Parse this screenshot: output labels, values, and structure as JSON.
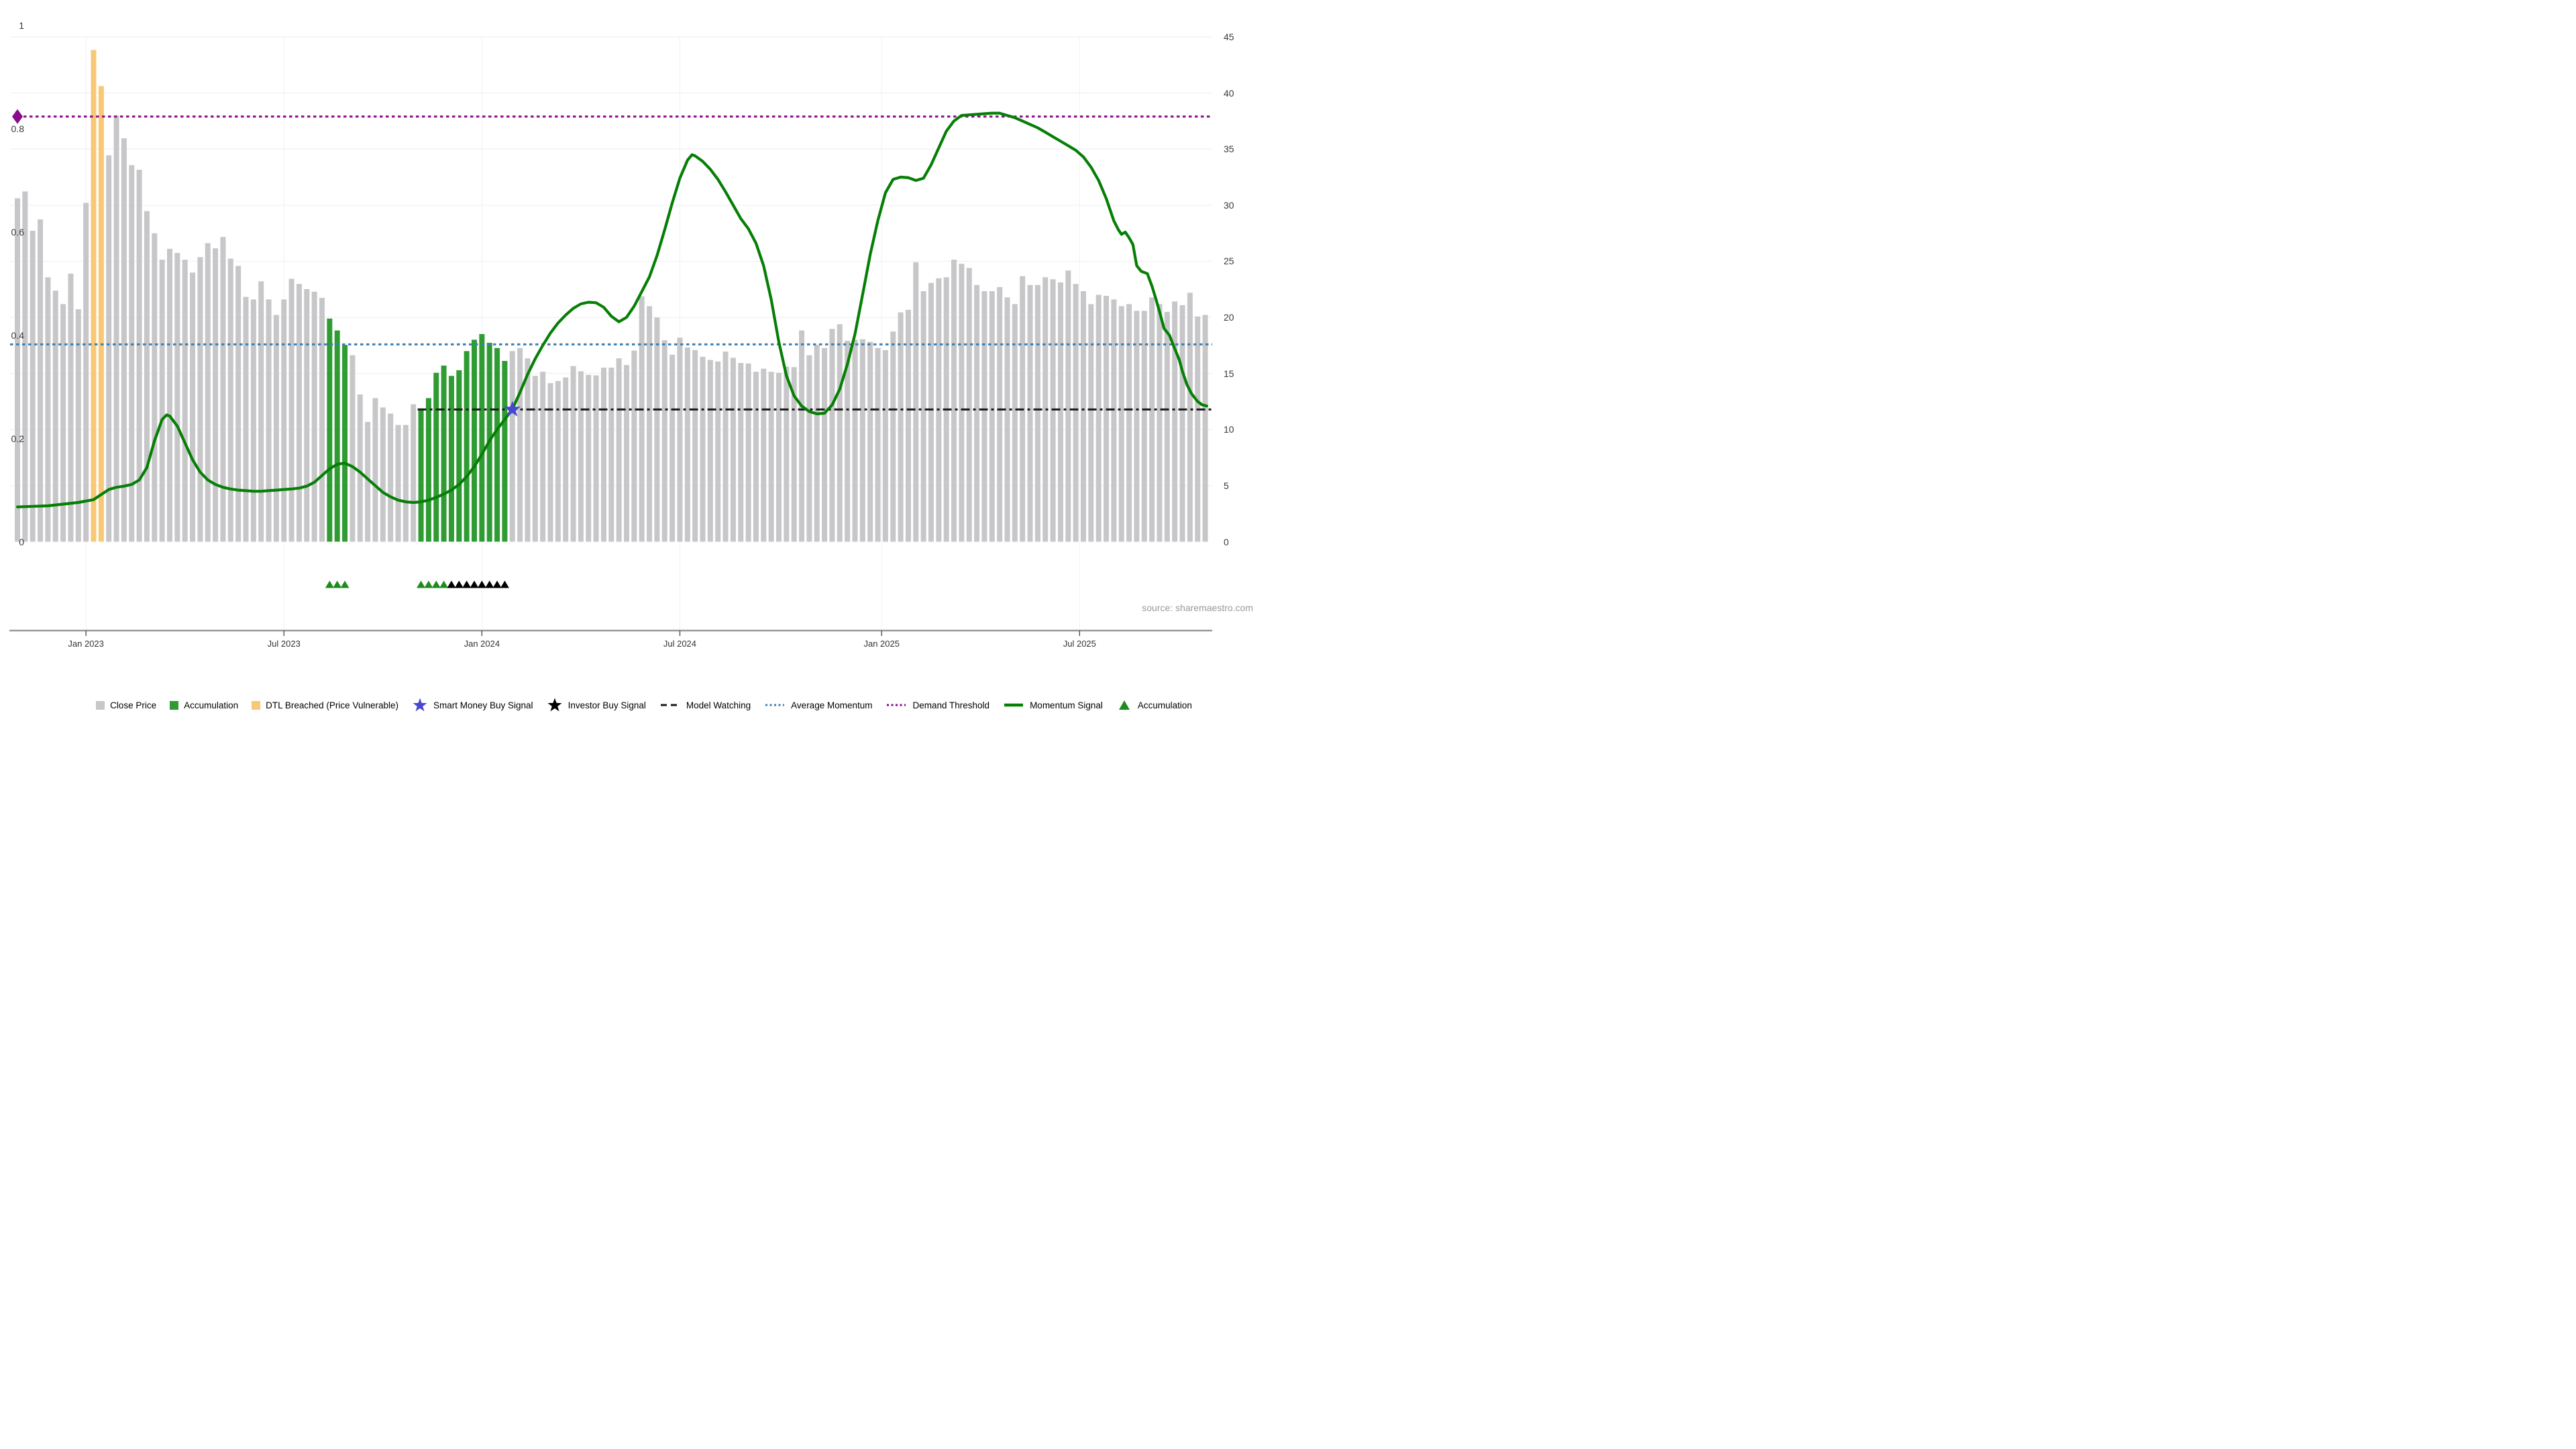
{
  "source_note": "source: sharemaestro.com",
  "colors": {
    "close_price_bar": "#c7c7c9",
    "accumulation_bar": "#2f9b33",
    "dtl_breached_bar": "#f8c876",
    "momentum_line": "#057f05",
    "average_momentum_line": "#3e7fb1",
    "demand_threshold_line": "#8a0b8a",
    "model_watching_line": "#1a1a1a",
    "smart_money_star": "#4747d1",
    "investor_star": "#000000",
    "accumulation_triangle": "#1d8c1d",
    "gridline": "#eceef4",
    "x_axis_line": "#999999",
    "tick_text": "#333333"
  },
  "left_axis": {
    "ticks": [
      {
        "label": "0",
        "v": 0
      },
      {
        "label": "0.2",
        "v": 0.2
      },
      {
        "label": "0.4",
        "v": 0.4
      },
      {
        "label": "0.6",
        "v": 0.6
      },
      {
        "label": "0.8",
        "v": 0.8
      },
      {
        "label": "1",
        "v": 1
      }
    ]
  },
  "right_axis": {
    "ticks": [
      {
        "label": "0",
        "v": 0
      },
      {
        "label": "5",
        "v": 5
      },
      {
        "label": "10",
        "v": 10
      },
      {
        "label": "15",
        "v": 15
      },
      {
        "label": "20",
        "v": 20
      },
      {
        "label": "25",
        "v": 25
      },
      {
        "label": "30",
        "v": 30
      },
      {
        "label": "35",
        "v": 35
      },
      {
        "label": "40",
        "v": 40
      },
      {
        "label": "45",
        "v": 45
      }
    ]
  },
  "x_axis": {
    "ticks": [
      {
        "label": "Jan 2023",
        "bar": 9
      },
      {
        "label": "Jul 2023",
        "bar": 35
      },
      {
        "label": "Jan 2024",
        "bar": 61
      },
      {
        "label": "Jul 2024",
        "bar": 87
      },
      {
        "label": "Jan 2025",
        "bar": 113.5
      },
      {
        "label": "Jul 2025",
        "bar": 139.5
      }
    ]
  },
  "legend": [
    {
      "label": "Close Price",
      "marker": "square",
      "color": "#c7c7c9"
    },
    {
      "label": "Accumulation",
      "marker": "square",
      "color": "#2f9b33"
    },
    {
      "label": "DTL Breached (Price Vulnerable)",
      "marker": "square",
      "color": "#f8c876"
    },
    {
      "label": "Smart Money Buy Signal",
      "marker": "star",
      "color": "#4747d1"
    },
    {
      "label": "Investor Buy Signal",
      "marker": "star",
      "color": "#000000"
    },
    {
      "label": "Model Watching",
      "marker": "dashed-line",
      "color": "#1a1a1a"
    },
    {
      "label": "Average Momentum",
      "marker": "dotted-line",
      "color": "#3e7fb1"
    },
    {
      "label": "Demand Threshold",
      "marker": "dotted-line",
      "color": "#8a0b8a"
    },
    {
      "label": "Momentum Signal",
      "marker": "solid-line",
      "color": "#057f05"
    },
    {
      "label": "Accumulation",
      "marker": "triangle",
      "color": "#1d8c1d"
    }
  ],
  "chart_data": {
    "type": "bar",
    "x_description": "weekly bars, Nov 2022 - Oct 2025",
    "ylim_left": [
      0,
      1
    ],
    "ylim_right": [
      0,
      45
    ],
    "grid": "horizontal, every 5 units of right axis; faint vertical at month ticks",
    "legend_position": "bottom center",
    "series": [
      {
        "name": "Close Price",
        "type": "bar",
        "axis": "left",
        "values": [
          0.665,
          0.678,
          0.602,
          0.624,
          0.512,
          0.486,
          0.46,
          0.519,
          0.45,
          0.656,
          0.952,
          0.882,
          0.748,
          0.825,
          0.781,
          0.729,
          0.72,
          0.64,
          0.597,
          0.546,
          0.567,
          0.559,
          0.546,
          0.521,
          0.551,
          0.578,
          0.568,
          0.59,
          0.548,
          0.534,
          0.474,
          0.469,
          0.504,
          0.469,
          0.439,
          0.469,
          0.509,
          0.499,
          0.489,
          0.484,
          0.472,
          0.432,
          0.409,
          0.381,
          0.361,
          0.285,
          0.232,
          0.278,
          0.26,
          0.248,
          0.226,
          0.226,
          0.266,
          0.258,
          0.278,
          0.327,
          0.341,
          0.321,
          0.332,
          0.369,
          0.391,
          0.402,
          0.385,
          0.375,
          0.35,
          0.369,
          0.375,
          0.355,
          0.321,
          0.329,
          0.307,
          0.311,
          0.318,
          0.34,
          0.33,
          0.323,
          0.322,
          0.337,
          0.337,
          0.355,
          0.342,
          0.37,
          0.475,
          0.456,
          0.434,
          0.39,
          0.362,
          0.395,
          0.376,
          0.371,
          0.358,
          0.352,
          0.349,
          0.368,
          0.356,
          0.346,
          0.345,
          0.329,
          0.335,
          0.329,
          0.327,
          0.339,
          0.338,
          0.409,
          0.361,
          0.381,
          0.375,
          0.412,
          0.421,
          0.389,
          0.391,
          0.392,
          0.387,
          0.375,
          0.371,
          0.407,
          0.444,
          0.449,
          0.541,
          0.485,
          0.501,
          0.51,
          0.512,
          0.546,
          0.538,
          0.53,
          0.497,
          0.485,
          0.485,
          0.493,
          0.473,
          0.46,
          0.514,
          0.497,
          0.497,
          0.512,
          0.508,
          0.502,
          0.525,
          0.499,
          0.485,
          0.46,
          0.478,
          0.476,
          0.469,
          0.456,
          0.46,
          0.447,
          0.447,
          0.473,
          0.46,
          0.445,
          0.465,
          0.458,
          0.482,
          0.436,
          0.439
        ]
      },
      {
        "name": "Momentum Signal",
        "type": "line",
        "axis": "right",
        "points": [
          [
            0,
            3.1
          ],
          [
            2,
            3.15
          ],
          [
            4,
            3.2
          ],
          [
            6,
            3.35
          ],
          [
            8,
            3.5
          ],
          [
            10,
            3.75
          ],
          [
            11,
            4.2
          ],
          [
            12,
            4.65
          ],
          [
            13,
            4.85
          ],
          [
            14,
            4.95
          ],
          [
            15,
            5.1
          ],
          [
            16,
            5.5
          ],
          [
            17,
            6.6
          ],
          [
            18,
            9.0
          ],
          [
            19,
            10.9
          ],
          [
            19.6,
            11.3
          ],
          [
            20,
            11.2
          ],
          [
            21,
            10.3
          ],
          [
            22,
            8.8
          ],
          [
            23,
            7.3
          ],
          [
            24,
            6.2
          ],
          [
            25,
            5.5
          ],
          [
            26,
            5.1
          ],
          [
            27,
            4.85
          ],
          [
            28,
            4.7
          ],
          [
            29,
            4.6
          ],
          [
            30,
            4.55
          ],
          [
            31,
            4.5
          ],
          [
            32,
            4.5
          ],
          [
            33,
            4.55
          ],
          [
            34,
            4.6
          ],
          [
            35,
            4.65
          ],
          [
            36,
            4.7
          ],
          [
            37,
            4.78
          ],
          [
            38,
            4.95
          ],
          [
            39,
            5.3
          ],
          [
            40,
            5.9
          ],
          [
            41,
            6.5
          ],
          [
            42,
            6.9
          ],
          [
            43,
            7.0
          ],
          [
            44,
            6.7
          ],
          [
            45,
            6.2
          ],
          [
            46,
            5.6
          ],
          [
            47,
            5.0
          ],
          [
            48,
            4.4
          ],
          [
            49,
            4.0
          ],
          [
            50,
            3.7
          ],
          [
            51,
            3.55
          ],
          [
            52,
            3.5
          ],
          [
            53,
            3.55
          ],
          [
            54,
            3.7
          ],
          [
            55,
            3.95
          ],
          [
            56,
            4.25
          ],
          [
            57,
            4.6
          ],
          [
            58,
            5.1
          ],
          [
            59,
            5.8
          ],
          [
            60,
            6.7
          ],
          [
            61,
            7.8
          ],
          [
            62,
            9.0
          ],
          [
            63,
            10.0
          ],
          [
            64,
            10.9
          ],
          [
            65,
            11.8
          ],
          [
            66,
            13.3
          ],
          [
            67,
            14.9
          ],
          [
            68,
            16.3
          ],
          [
            69,
            17.5
          ],
          [
            70,
            18.6
          ],
          [
            71,
            19.5
          ],
          [
            72,
            20.2
          ],
          [
            73,
            20.8
          ],
          [
            74,
            21.2
          ],
          [
            75,
            21.35
          ],
          [
            76,
            21.3
          ],
          [
            77,
            20.9
          ],
          [
            78,
            20.1
          ],
          [
            79,
            19.6
          ],
          [
            80,
            20.0
          ],
          [
            81,
            21.0
          ],
          [
            82,
            22.3
          ],
          [
            83,
            23.6
          ],
          [
            84,
            25.5
          ],
          [
            85,
            27.8
          ],
          [
            86,
            30.2
          ],
          [
            87,
            32.4
          ],
          [
            88,
            34.0
          ],
          [
            88.6,
            34.5
          ],
          [
            89,
            34.4
          ],
          [
            90,
            33.9
          ],
          [
            91,
            33.2
          ],
          [
            92,
            32.3
          ],
          [
            93,
            31.2
          ],
          [
            94,
            30.0
          ],
          [
            95,
            28.8
          ],
          [
            96,
            27.9
          ],
          [
            97,
            26.6
          ],
          [
            98,
            24.6
          ],
          [
            99,
            21.6
          ],
          [
            100,
            17.8
          ],
          [
            101,
            14.8
          ],
          [
            102,
            13.0
          ],
          [
            103,
            12.1
          ],
          [
            104,
            11.6
          ],
          [
            105,
            11.4
          ],
          [
            106,
            11.45
          ],
          [
            107,
            12.2
          ],
          [
            108,
            13.6
          ],
          [
            109,
            15.8
          ],
          [
            110,
            18.5
          ],
          [
            111,
            22.0
          ],
          [
            112,
            25.6
          ],
          [
            113,
            28.6
          ],
          [
            114,
            31.1
          ],
          [
            115,
            32.3
          ],
          [
            116,
            32.5
          ],
          [
            117,
            32.45
          ],
          [
            118,
            32.2
          ],
          [
            119,
            32.4
          ],
          [
            120,
            33.6
          ],
          [
            121,
            35.1
          ],
          [
            122,
            36.6
          ],
          [
            123,
            37.5
          ],
          [
            124,
            38.0
          ],
          [
            125,
            38.05
          ],
          [
            126,
            38.1
          ],
          [
            127,
            38.15
          ],
          [
            128,
            38.2
          ],
          [
            129,
            38.2
          ],
          [
            130,
            38.0
          ],
          [
            131,
            37.8
          ],
          [
            132,
            37.5
          ],
          [
            133,
            37.2
          ],
          [
            134,
            36.9
          ],
          [
            135,
            36.5
          ],
          [
            136,
            36.1
          ],
          [
            137,
            35.7
          ],
          [
            138,
            35.3
          ],
          [
            139,
            34.9
          ],
          [
            140,
            34.3
          ],
          [
            141,
            33.4
          ],
          [
            142,
            32.2
          ],
          [
            143,
            30.6
          ],
          [
            144,
            28.6
          ],
          [
            144.6,
            27.8
          ],
          [
            145,
            27.4
          ],
          [
            145.5,
            27.6
          ],
          [
            146,
            27.1
          ],
          [
            146.5,
            26.5
          ],
          [
            147,
            24.6
          ],
          [
            147.6,
            24.1
          ],
          [
            148.4,
            23.9
          ],
          [
            149,
            22.8
          ],
          [
            149.5,
            21.7
          ],
          [
            150,
            20.5
          ],
          [
            150.6,
            19.0
          ],
          [
            151.3,
            18.4
          ],
          [
            152,
            17.2
          ],
          [
            152.6,
            16.2
          ],
          [
            153,
            15.2
          ],
          [
            153.6,
            14.0
          ],
          [
            154.2,
            13.2
          ],
          [
            155,
            12.5
          ],
          [
            155.6,
            12.2
          ],
          [
            156.2,
            12.1
          ]
        ]
      }
    ],
    "bar_color_overrides": {
      "dtl_breached_orange": [
        10,
        11
      ],
      "accumulation_green": [
        41,
        42,
        43,
        53,
        54,
        55,
        56,
        57,
        58,
        59,
        60,
        61,
        62,
        63,
        64
      ]
    },
    "hlines": [
      {
        "name": "Demand Threshold",
        "left_value": 0.823,
        "style": "dotted",
        "color": "#8a0b8a",
        "start": "plot-left-marker",
        "marker": "diamond"
      },
      {
        "name": "Average Momentum",
        "left_value": 0.382,
        "style": "dotted",
        "color": "#3e7fb1",
        "start": "plot-left"
      },
      {
        "name": "Model Watching",
        "left_value": 0.256,
        "style": "dash-dot",
        "color": "#1a1a1a",
        "start_bar": 53
      }
    ],
    "signals": {
      "smart_money_buy_star": {
        "bar": 65,
        "left_value": 0.256,
        "color": "#4747d1"
      },
      "demand_threshold_diamond": {
        "bar": 0,
        "left_value": 0.823,
        "color": "#8a0b8a"
      }
    },
    "triangle_markers": {
      "accumulation_green_bars": [
        41,
        42,
        43,
        53,
        54,
        55,
        56
      ],
      "investor_buy_black_bars": [
        57,
        58,
        59,
        60,
        61,
        62,
        63,
        64
      ]
    }
  }
}
